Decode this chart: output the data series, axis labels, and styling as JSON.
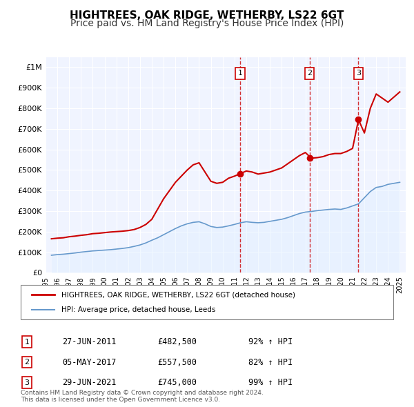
{
  "title": "HIGHTREES, OAK RIDGE, WETHERBY, LS22 6GT",
  "subtitle": "Price paid vs. HM Land Registry's House Price Index (HPI)",
  "title_fontsize": 11,
  "subtitle_fontsize": 10,
  "xlim": [
    1995,
    2025.5
  ],
  "ylim": [
    0,
    1050000
  ],
  "yticks": [
    0,
    100000,
    200000,
    300000,
    400000,
    500000,
    600000,
    700000,
    800000,
    900000,
    1000000
  ],
  "ytick_labels": [
    "£0",
    "£100K",
    "£200K",
    "£300K",
    "£400K",
    "£500K",
    "£600K",
    "£700K",
    "£800K",
    "£900K",
    "£1M"
  ],
  "xticks": [
    1995,
    1996,
    1997,
    1998,
    1999,
    2000,
    2001,
    2002,
    2003,
    2004,
    2005,
    2006,
    2007,
    2008,
    2009,
    2010,
    2011,
    2012,
    2013,
    2014,
    2015,
    2016,
    2017,
    2018,
    2019,
    2020,
    2021,
    2022,
    2023,
    2024,
    2025
  ],
  "red_line_color": "#cc0000",
  "blue_line_color": "#6699cc",
  "blue_fill_color": "#ddeeff",
  "background_color": "#f0f4ff",
  "grid_color": "#ffffff",
  "sale_points": [
    {
      "year": 2011.49,
      "value": 482500,
      "label": "1"
    },
    {
      "year": 2017.35,
      "value": 557500,
      "label": "2"
    },
    {
      "year": 2021.49,
      "value": 745000,
      "label": "3"
    }
  ],
  "vline_years": [
    2011.49,
    2017.35,
    2021.49
  ],
  "legend_red_label": "HIGHTREES, OAK RIDGE, WETHERBY, LS22 6GT (detached house)",
  "legend_blue_label": "HPI: Average price, detached house, Leeds",
  "table_rows": [
    {
      "num": "1",
      "date": "27-JUN-2011",
      "price": "£482,500",
      "pct": "92% ↑ HPI"
    },
    {
      "num": "2",
      "date": "05-MAY-2017",
      "price": "£557,500",
      "pct": "82% ↑ HPI"
    },
    {
      "num": "3",
      "date": "29-JUN-2021",
      "price": "£745,000",
      "pct": "99% ↑ HPI"
    }
  ],
  "footer": "Contains HM Land Registry data © Crown copyright and database right 2024.\nThis data is licensed under the Open Government Licence v3.0.",
  "red_x": [
    1995.5,
    1996.0,
    1996.5,
    1997.0,
    1997.5,
    1998.0,
    1998.5,
    1999.0,
    1999.5,
    2000.0,
    2000.5,
    2001.0,
    2001.5,
    2002.0,
    2002.5,
    2003.0,
    2003.5,
    2004.0,
    2004.5,
    2005.0,
    2005.5,
    2006.0,
    2006.5,
    2007.0,
    2007.5,
    2008.0,
    2008.5,
    2009.0,
    2009.5,
    2010.0,
    2010.5,
    2011.0,
    2011.5,
    2012.0,
    2012.5,
    2013.0,
    2013.5,
    2014.0,
    2014.5,
    2015.0,
    2015.5,
    2016.0,
    2016.5,
    2017.0,
    2017.5,
    2018.0,
    2018.5,
    2019.0,
    2019.5,
    2020.0,
    2020.5,
    2021.0,
    2021.5,
    2022.0,
    2022.5,
    2023.0,
    2023.5,
    2024.0,
    2024.5,
    2025.0
  ],
  "red_y": [
    165000,
    168000,
    170000,
    175000,
    178000,
    182000,
    185000,
    190000,
    192000,
    195000,
    198000,
    200000,
    202000,
    205000,
    210000,
    220000,
    235000,
    260000,
    310000,
    360000,
    400000,
    440000,
    470000,
    500000,
    525000,
    535000,
    490000,
    445000,
    435000,
    440000,
    460000,
    470000,
    482500,
    495000,
    490000,
    480000,
    485000,
    490000,
    500000,
    510000,
    530000,
    550000,
    570000,
    585000,
    557500,
    560000,
    565000,
    575000,
    580000,
    580000,
    590000,
    605000,
    745000,
    680000,
    800000,
    870000,
    850000,
    830000,
    855000,
    880000
  ],
  "blue_x": [
    1995.5,
    1996.0,
    1996.5,
    1997.0,
    1997.5,
    1998.0,
    1998.5,
    1999.0,
    1999.5,
    2000.0,
    2000.5,
    2001.0,
    2001.5,
    2002.0,
    2002.5,
    2003.0,
    2003.5,
    2004.0,
    2004.5,
    2005.0,
    2005.5,
    2006.0,
    2006.5,
    2007.0,
    2007.5,
    2008.0,
    2008.5,
    2009.0,
    2009.5,
    2010.0,
    2010.5,
    2011.0,
    2011.5,
    2012.0,
    2012.5,
    2013.0,
    2013.5,
    2014.0,
    2014.5,
    2015.0,
    2015.5,
    2016.0,
    2016.5,
    2017.0,
    2017.5,
    2018.0,
    2018.5,
    2019.0,
    2019.5,
    2020.0,
    2020.5,
    2021.0,
    2021.5,
    2022.0,
    2022.5,
    2023.0,
    2023.5,
    2024.0,
    2024.5,
    2025.0
  ],
  "blue_y": [
    85000,
    88000,
    90000,
    93000,
    96000,
    100000,
    103000,
    106000,
    108000,
    110000,
    112000,
    115000,
    118000,
    122000,
    128000,
    135000,
    145000,
    158000,
    170000,
    185000,
    200000,
    215000,
    228000,
    238000,
    245000,
    248000,
    238000,
    225000,
    220000,
    222000,
    228000,
    235000,
    243000,
    248000,
    245000,
    243000,
    245000,
    250000,
    255000,
    260000,
    268000,
    278000,
    288000,
    295000,
    298000,
    302000,
    305000,
    308000,
    310000,
    308000,
    315000,
    325000,
    335000,
    365000,
    395000,
    415000,
    420000,
    430000,
    435000,
    440000
  ]
}
